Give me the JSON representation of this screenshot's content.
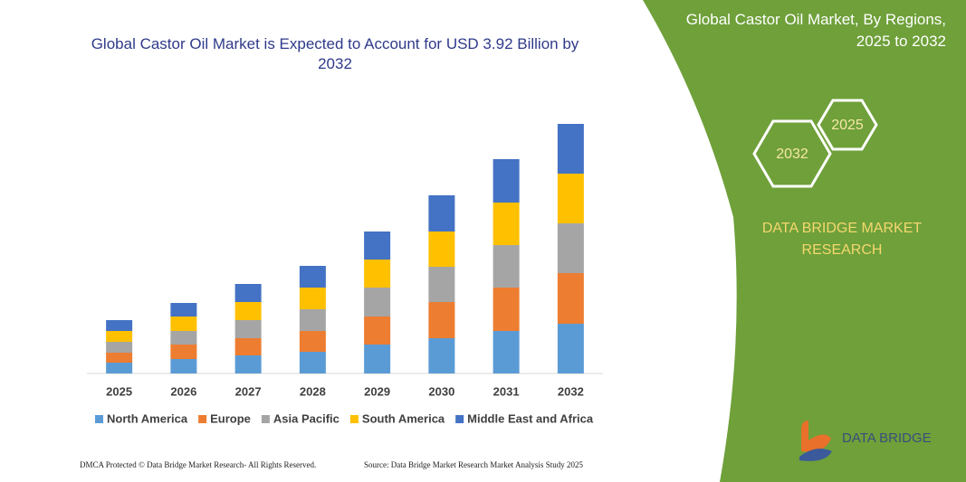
{
  "chart_data": {
    "type": "stacked-bar",
    "title": "Global Castor Oil Market is Expected to Account for USD 3.92 Billion by 2032",
    "categories": [
      "2025",
      "2026",
      "2027",
      "2028",
      "2029",
      "2030",
      "2031",
      "2032"
    ],
    "series": [
      {
        "name": "North America",
        "color": "#5b9bd5",
        "values": [
          12,
          16,
          20,
          24,
          32,
          39,
          47,
          55
        ]
      },
      {
        "name": "Europe",
        "color": "#ed7d31",
        "values": [
          11,
          16,
          19,
          23,
          31,
          40,
          48,
          56
        ]
      },
      {
        "name": "Asia Pacific",
        "color": "#a5a5a5",
        "values": [
          12,
          15,
          20,
          24,
          32,
          39,
          47,
          55
        ]
      },
      {
        "name": "South America",
        "color": "#ffc000",
        "values": [
          12,
          16,
          20,
          24,
          31,
          39,
          47,
          55
        ]
      },
      {
        "name": "Middle East and Africa",
        "color": "#4472c4",
        "values": [
          12,
          15,
          20,
          24,
          31,
          40,
          48,
          55
        ]
      }
    ],
    "ylim": [
      0,
      280
    ],
    "legend": "bottom"
  },
  "panel": {
    "title": "Global Castor Oil Market, By Regions, 2025 to 2032",
    "hexagons": [
      "2025",
      "2032"
    ],
    "brand": "DATA BRIDGE MARKET RESEARCH",
    "logo": "DATA BRIDGE"
  },
  "footer": {
    "left": "DMCA Protected © Data Bridge Market Research- All Rights Reserved.",
    "right": "Source: Data Bridge Market Research Market Analysis Study 2025"
  }
}
